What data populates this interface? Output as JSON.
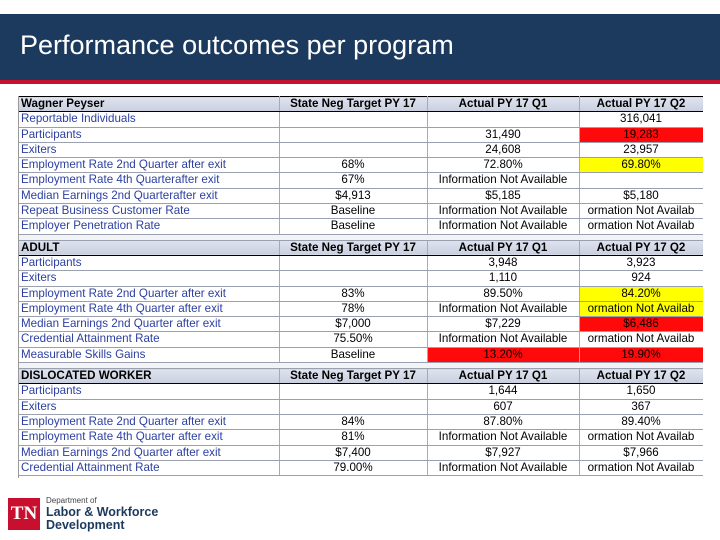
{
  "title": "Performance outcomes per program",
  "logo": {
    "badge": "TN",
    "line1": "Department of",
    "line2": "Labor & Workforce",
    "line3": "Development"
  },
  "sections": [
    {
      "header": [
        "Wagner Peyser",
        "State Neg Target PY 17",
        "Actual PY 17  Q1",
        "Actual PY 17  Q2"
      ],
      "rows": [
        [
          "Reportable Individuals",
          "",
          "",
          "316,041"
        ],
        [
          "Participants",
          "",
          "31,490",
          "19,283"
        ],
        [
          "Exiters",
          "",
          "24,608",
          "23,957"
        ],
        [
          "Employment Rate 2nd Quarter after exit",
          "68%",
          "72.80%",
          "69.80%"
        ],
        [
          "Employment Rate 4th Quarterafter exit",
          "67%",
          "Information Not Available",
          ""
        ],
        [
          "Median Earnings 2nd Quarterafter exit",
          "$4,913",
          "$5,185",
          "$5,180"
        ],
        [
          "Repeat Business Customer Rate",
          "Baseline",
          "Information Not Available",
          "ormation Not Availab"
        ],
        [
          "Employer Penetration Rate",
          "Baseline",
          "Information Not Available",
          "ormation Not Availab"
        ]
      ]
    },
    {
      "header": [
        "ADULT",
        "State Neg Target PY 17",
        "Actual PY 17  Q1",
        "Actual PY 17  Q2"
      ],
      "rows": [
        [
          "Participants",
          "",
          "3,948",
          "3,923"
        ],
        [
          "Exiters",
          "",
          "1,110",
          "924"
        ],
        [
          "Employment Rate 2nd Quarter after exit",
          "83%",
          "89.50%",
          "84.20%"
        ],
        [
          "Employment Rate 4th Quarter after exit",
          "78%",
          "Information Not Available",
          "ormation Not Availab"
        ],
        [
          "Median Earnings 2nd Quarter after exit",
          "$7,000",
          "$7,229",
          "$6,486"
        ],
        [
          "Credential Attainment Rate",
          "75.50%",
          "Information Not Available",
          "ormation Not Availab"
        ],
        [
          "Measurable Skills Gains",
          "Baseline",
          "13.20%",
          "19.90%"
        ]
      ]
    },
    {
      "header": [
        "DISLOCATED WORKER",
        "State Neg Target PY 17",
        "Actual PY 17  Q1",
        "Actual PY 17  Q2"
      ],
      "rows": [
        [
          "Participants",
          "",
          "1,644",
          "1,650"
        ],
        [
          "Exiters",
          "",
          "607",
          "367"
        ],
        [
          "Employment Rate 2nd Quarter after exit",
          "84%",
          "87.80%",
          "89.40%"
        ],
        [
          "Employment Rate 4th Quarter after exit",
          "81%",
          "Information Not Available",
          "ormation Not Availab"
        ],
        [
          "Median Earnings 2nd Quarter after exit",
          "$7,400",
          "$7,927",
          "$7,966"
        ],
        [
          "Credential Attainment Rate",
          "79.00%",
          "Information Not Available",
          "ormation Not Availab"
        ]
      ]
    }
  ],
  "highlights": {
    "red_color": "#ff0a0a",
    "yellow_color": "#ffff00"
  }
}
